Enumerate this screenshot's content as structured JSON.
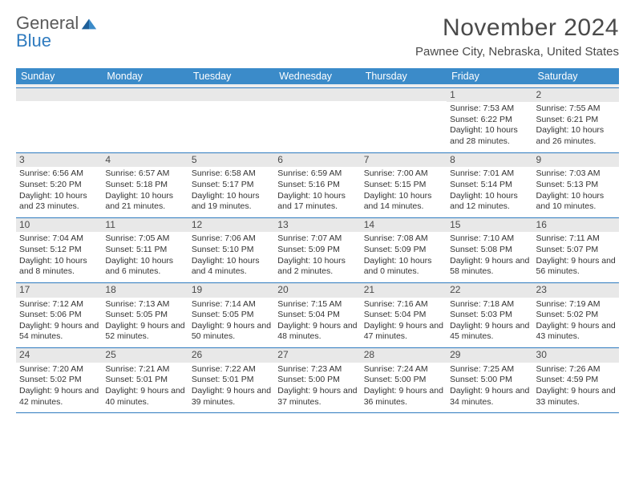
{
  "logo": {
    "text1": "General",
    "text2": "Blue"
  },
  "title": "November 2024",
  "location": "Pawnee City, Nebraska, United States",
  "colors": {
    "header_bg": "#3b8bc9",
    "border": "#2f7bbf",
    "daynum_bg": "#e8e8e8",
    "text": "#333333",
    "logo_gray": "#5a5a5a",
    "logo_blue": "#2f7bbf"
  },
  "weekdays": [
    "Sunday",
    "Monday",
    "Tuesday",
    "Wednesday",
    "Thursday",
    "Friday",
    "Saturday"
  ],
  "weeks": [
    [
      {
        "day": "",
        "sunrise": "",
        "sunset": "",
        "daylight": ""
      },
      {
        "day": "",
        "sunrise": "",
        "sunset": "",
        "daylight": ""
      },
      {
        "day": "",
        "sunrise": "",
        "sunset": "",
        "daylight": ""
      },
      {
        "day": "",
        "sunrise": "",
        "sunset": "",
        "daylight": ""
      },
      {
        "day": "",
        "sunrise": "",
        "sunset": "",
        "daylight": ""
      },
      {
        "day": "1",
        "sunrise": "Sunrise: 7:53 AM",
        "sunset": "Sunset: 6:22 PM",
        "daylight": "Daylight: 10 hours and 28 minutes."
      },
      {
        "day": "2",
        "sunrise": "Sunrise: 7:55 AM",
        "sunset": "Sunset: 6:21 PM",
        "daylight": "Daylight: 10 hours and 26 minutes."
      }
    ],
    [
      {
        "day": "3",
        "sunrise": "Sunrise: 6:56 AM",
        "sunset": "Sunset: 5:20 PM",
        "daylight": "Daylight: 10 hours and 23 minutes."
      },
      {
        "day": "4",
        "sunrise": "Sunrise: 6:57 AM",
        "sunset": "Sunset: 5:18 PM",
        "daylight": "Daylight: 10 hours and 21 minutes."
      },
      {
        "day": "5",
        "sunrise": "Sunrise: 6:58 AM",
        "sunset": "Sunset: 5:17 PM",
        "daylight": "Daylight: 10 hours and 19 minutes."
      },
      {
        "day": "6",
        "sunrise": "Sunrise: 6:59 AM",
        "sunset": "Sunset: 5:16 PM",
        "daylight": "Daylight: 10 hours and 17 minutes."
      },
      {
        "day": "7",
        "sunrise": "Sunrise: 7:00 AM",
        "sunset": "Sunset: 5:15 PM",
        "daylight": "Daylight: 10 hours and 14 minutes."
      },
      {
        "day": "8",
        "sunrise": "Sunrise: 7:01 AM",
        "sunset": "Sunset: 5:14 PM",
        "daylight": "Daylight: 10 hours and 12 minutes."
      },
      {
        "day": "9",
        "sunrise": "Sunrise: 7:03 AM",
        "sunset": "Sunset: 5:13 PM",
        "daylight": "Daylight: 10 hours and 10 minutes."
      }
    ],
    [
      {
        "day": "10",
        "sunrise": "Sunrise: 7:04 AM",
        "sunset": "Sunset: 5:12 PM",
        "daylight": "Daylight: 10 hours and 8 minutes."
      },
      {
        "day": "11",
        "sunrise": "Sunrise: 7:05 AM",
        "sunset": "Sunset: 5:11 PM",
        "daylight": "Daylight: 10 hours and 6 minutes."
      },
      {
        "day": "12",
        "sunrise": "Sunrise: 7:06 AM",
        "sunset": "Sunset: 5:10 PM",
        "daylight": "Daylight: 10 hours and 4 minutes."
      },
      {
        "day": "13",
        "sunrise": "Sunrise: 7:07 AM",
        "sunset": "Sunset: 5:09 PM",
        "daylight": "Daylight: 10 hours and 2 minutes."
      },
      {
        "day": "14",
        "sunrise": "Sunrise: 7:08 AM",
        "sunset": "Sunset: 5:09 PM",
        "daylight": "Daylight: 10 hours and 0 minutes."
      },
      {
        "day": "15",
        "sunrise": "Sunrise: 7:10 AM",
        "sunset": "Sunset: 5:08 PM",
        "daylight": "Daylight: 9 hours and 58 minutes."
      },
      {
        "day": "16",
        "sunrise": "Sunrise: 7:11 AM",
        "sunset": "Sunset: 5:07 PM",
        "daylight": "Daylight: 9 hours and 56 minutes."
      }
    ],
    [
      {
        "day": "17",
        "sunrise": "Sunrise: 7:12 AM",
        "sunset": "Sunset: 5:06 PM",
        "daylight": "Daylight: 9 hours and 54 minutes."
      },
      {
        "day": "18",
        "sunrise": "Sunrise: 7:13 AM",
        "sunset": "Sunset: 5:05 PM",
        "daylight": "Daylight: 9 hours and 52 minutes."
      },
      {
        "day": "19",
        "sunrise": "Sunrise: 7:14 AM",
        "sunset": "Sunset: 5:05 PM",
        "daylight": "Daylight: 9 hours and 50 minutes."
      },
      {
        "day": "20",
        "sunrise": "Sunrise: 7:15 AM",
        "sunset": "Sunset: 5:04 PM",
        "daylight": "Daylight: 9 hours and 48 minutes."
      },
      {
        "day": "21",
        "sunrise": "Sunrise: 7:16 AM",
        "sunset": "Sunset: 5:04 PM",
        "daylight": "Daylight: 9 hours and 47 minutes."
      },
      {
        "day": "22",
        "sunrise": "Sunrise: 7:18 AM",
        "sunset": "Sunset: 5:03 PM",
        "daylight": "Daylight: 9 hours and 45 minutes."
      },
      {
        "day": "23",
        "sunrise": "Sunrise: 7:19 AM",
        "sunset": "Sunset: 5:02 PM",
        "daylight": "Daylight: 9 hours and 43 minutes."
      }
    ],
    [
      {
        "day": "24",
        "sunrise": "Sunrise: 7:20 AM",
        "sunset": "Sunset: 5:02 PM",
        "daylight": "Daylight: 9 hours and 42 minutes."
      },
      {
        "day": "25",
        "sunrise": "Sunrise: 7:21 AM",
        "sunset": "Sunset: 5:01 PM",
        "daylight": "Daylight: 9 hours and 40 minutes."
      },
      {
        "day": "26",
        "sunrise": "Sunrise: 7:22 AM",
        "sunset": "Sunset: 5:01 PM",
        "daylight": "Daylight: 9 hours and 39 minutes."
      },
      {
        "day": "27",
        "sunrise": "Sunrise: 7:23 AM",
        "sunset": "Sunset: 5:00 PM",
        "daylight": "Daylight: 9 hours and 37 minutes."
      },
      {
        "day": "28",
        "sunrise": "Sunrise: 7:24 AM",
        "sunset": "Sunset: 5:00 PM",
        "daylight": "Daylight: 9 hours and 36 minutes."
      },
      {
        "day": "29",
        "sunrise": "Sunrise: 7:25 AM",
        "sunset": "Sunset: 5:00 PM",
        "daylight": "Daylight: 9 hours and 34 minutes."
      },
      {
        "day": "30",
        "sunrise": "Sunrise: 7:26 AM",
        "sunset": "Sunset: 4:59 PM",
        "daylight": "Daylight: 9 hours and 33 minutes."
      }
    ]
  ]
}
